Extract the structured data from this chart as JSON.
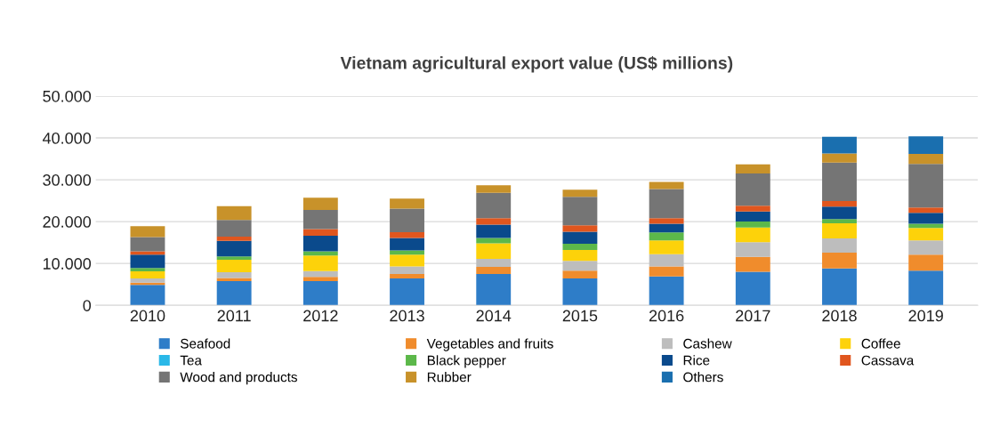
{
  "chart_data": {
    "type": "bar",
    "title": "Vietnam agricultural export value (US$ millions)",
    "stacked": true,
    "categories": [
      "2010",
      "2011",
      "2012",
      "2013",
      "2014",
      "2015",
      "2016",
      "2017",
      "2018",
      "2019"
    ],
    "series": [
      {
        "name": "Seafood",
        "color": "#2e7dc8",
        "values": [
          4900,
          5800,
          5800,
          6400,
          7500,
          6400,
          6900,
          8000,
          8800,
          8300
        ]
      },
      {
        "name": "Vegetables and fruits",
        "color": "#f08c2c",
        "values": [
          500,
          700,
          1000,
          1100,
          1700,
          1900,
          2400,
          3600,
          3800,
          3800
        ]
      },
      {
        "name": "Cashew",
        "color": "#bdbdbd",
        "values": [
          1000,
          1400,
          1400,
          1800,
          1900,
          2300,
          2900,
          3500,
          3400,
          3400
        ]
      },
      {
        "name": "Coffee",
        "color": "#fdd20a",
        "values": [
          1700,
          3000,
          3700,
          2800,
          3700,
          2600,
          3300,
          3500,
          3600,
          3000
        ]
      },
      {
        "name": "Tea",
        "color": "#2ab8e8",
        "values": [
          null,
          null,
          null,
          null,
          null,
          null,
          null,
          null,
          null,
          null
        ]
      },
      {
        "name": "Black pepper",
        "color": "#5cb84a",
        "values": [
          800,
          800,
          1000,
          1000,
          1300,
          1500,
          1900,
          1400,
          1000,
          1000
        ]
      },
      {
        "name": "Rice",
        "color": "#0a4a8c",
        "values": [
          3200,
          3700,
          3700,
          3000,
          3200,
          2900,
          2100,
          2400,
          3000,
          2600
        ]
      },
      {
        "name": "Cassava",
        "color": "#e0561e",
        "values": [
          800,
          1000,
          1600,
          1400,
          1500,
          1500,
          1300,
          1400,
          1300,
          1300
        ]
      },
      {
        "name": "Wood and products",
        "color": "#757575",
        "values": [
          3400,
          4000,
          4600,
          5600,
          6100,
          6800,
          7000,
          7700,
          9200,
          10400
        ]
      },
      {
        "name": "Rubber",
        "color": "#c8922a",
        "values": [
          2600,
          3300,
          2900,
          2400,
          1800,
          1700,
          1700,
          2200,
          2200,
          2400
        ]
      },
      {
        "name": "Others",
        "color": "#1a6faf",
        "values": [
          null,
          null,
          null,
          null,
          null,
          null,
          null,
          null,
          4000,
          4200
        ]
      }
    ],
    "ylim": [
      0,
      50000
    ],
    "yticks": [
      {
        "value": 0,
        "label": "0"
      },
      {
        "value": 10000,
        "label": "10.000"
      },
      {
        "value": 20000,
        "label": "20.000"
      },
      {
        "value": 30000,
        "label": "30.000"
      },
      {
        "value": 40000,
        "label": "40.000"
      },
      {
        "value": 50000,
        "label": "50.000"
      }
    ],
    "grid": "y",
    "legend": "bottom"
  }
}
